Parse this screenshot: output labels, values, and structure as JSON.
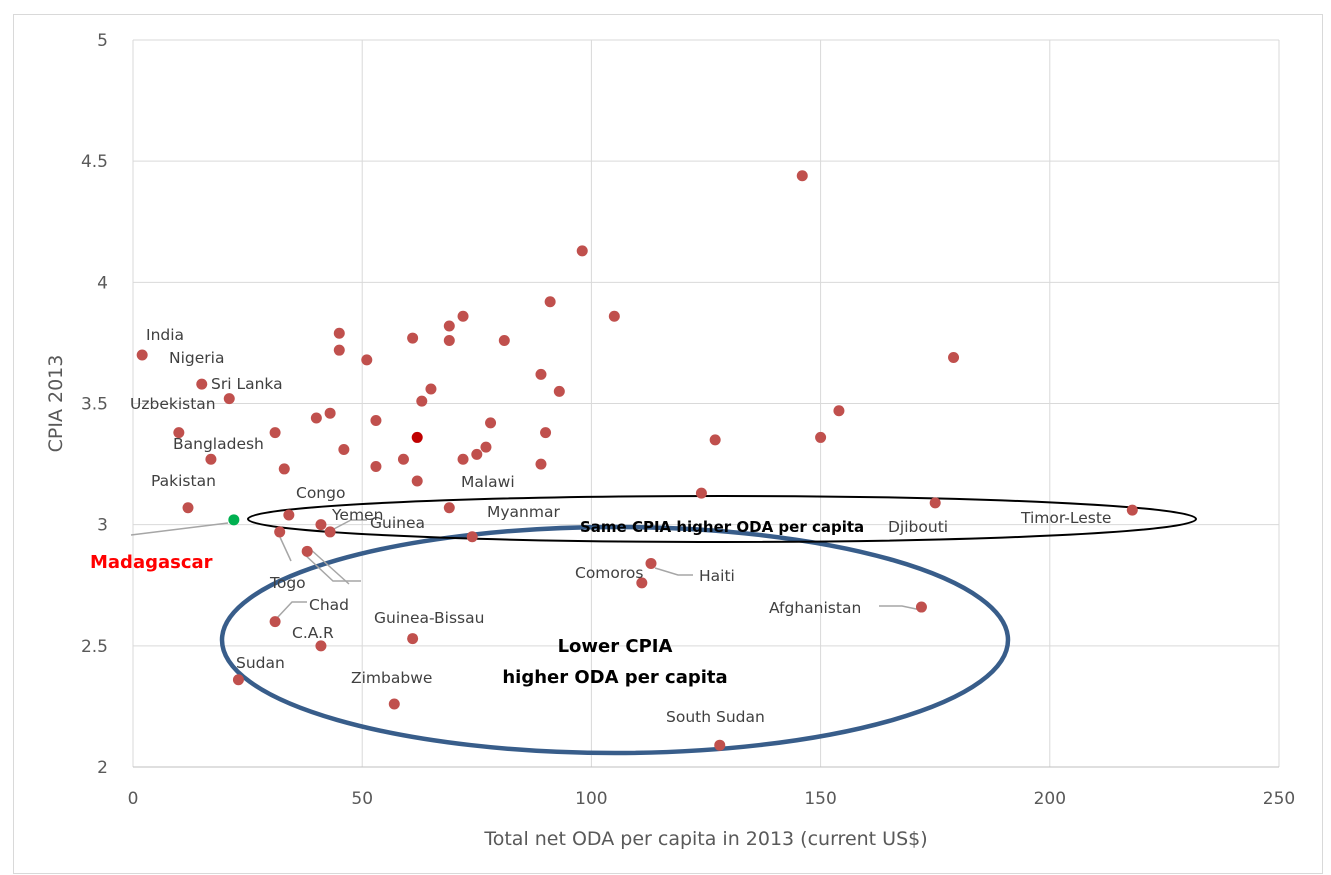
{
  "chart_data": {
    "type": "scatter",
    "title": "",
    "xlabel": "Total net ODA per capita in 2013 (current US$)",
    "ylabel": "CPIA 2013",
    "xlim": [
      0,
      250
    ],
    "ylim": [
      2,
      5
    ],
    "x_ticks": [
      "0",
      "50",
      "100",
      "150",
      "200",
      "250"
    ],
    "y_ticks": [
      "2",
      "2.5",
      "3",
      "3.5",
      "4",
      "4.5",
      "5"
    ],
    "grid": true,
    "colors": {
      "point": "#c0504d",
      "highlight": "#00b050",
      "average": "#c00000",
      "ellipse_lower": "#385d8a",
      "ellipse_same": "#000000",
      "leader": "#a6a6a6"
    },
    "points": [
      {
        "x": 2,
        "y": 3.7,
        "label": "India"
      },
      {
        "x": 15,
        "y": 3.58,
        "label": "Nigeria"
      },
      {
        "x": 21,
        "y": 3.52,
        "label": "Sri Lanka"
      },
      {
        "x": 10,
        "y": 3.38,
        "label": "Uzbekistan"
      },
      {
        "x": 17,
        "y": 3.27,
        "label": "Bangladesh"
      },
      {
        "x": 12,
        "y": 3.07,
        "label": "Pakistan"
      },
      {
        "x": 34,
        "y": 3.04,
        "label": "Congo"
      },
      {
        "x": 41,
        "y": 3.0,
        "label": "Yemen"
      },
      {
        "x": 43,
        "y": 2.97,
        "label": "Guinea"
      },
      {
        "x": 32,
        "y": 2.97,
        "label": "Togo"
      },
      {
        "x": 38,
        "y": 2.89,
        "label": "Chad"
      },
      {
        "x": 31,
        "y": 2.6,
        "label": "C.A.R"
      },
      {
        "x": 41,
        "y": 2.5,
        "label": "Sudan"
      },
      {
        "x": 23,
        "y": 2.36,
        "label": "Zimbabwe"
      },
      {
        "x": 61,
        "y": 2.53,
        "label": "Guinea-Bissau"
      },
      {
        "x": 57,
        "y": 2.26,
        "label": ""
      },
      {
        "x": 74,
        "y": 2.95,
        "label": "Myanmar"
      },
      {
        "x": 69,
        "y": 3.07,
        "label": "Malawi"
      },
      {
        "x": 111,
        "y": 2.76,
        "label": "Comoros"
      },
      {
        "x": 113,
        "y": 2.84,
        "label": "Haiti"
      },
      {
        "x": 172,
        "y": 2.66,
        "label": "Afghanistan"
      },
      {
        "x": 128,
        "y": 2.09,
        "label": "South Sudan"
      },
      {
        "x": 175,
        "y": 3.09,
        "label": "Djibouti"
      },
      {
        "x": 218,
        "y": 3.06,
        "label": "Timor-Leste"
      },
      {
        "x": 124,
        "y": 3.13,
        "label": ""
      },
      {
        "x": 146,
        "y": 4.44,
        "label": ""
      },
      {
        "x": 98,
        "y": 4.13,
        "label": ""
      },
      {
        "x": 91,
        "y": 3.92,
        "label": ""
      },
      {
        "x": 105,
        "y": 3.86,
        "label": ""
      },
      {
        "x": 72,
        "y": 3.86,
        "label": ""
      },
      {
        "x": 69,
        "y": 3.82,
        "label": ""
      },
      {
        "x": 45,
        "y": 3.79,
        "label": ""
      },
      {
        "x": 61,
        "y": 3.77,
        "label": ""
      },
      {
        "x": 81,
        "y": 3.76,
        "label": ""
      },
      {
        "x": 69,
        "y": 3.76,
        "label": ""
      },
      {
        "x": 45,
        "y": 3.72,
        "label": ""
      },
      {
        "x": 51,
        "y": 3.68,
        "label": ""
      },
      {
        "x": 179,
        "y": 3.69,
        "label": ""
      },
      {
        "x": 89,
        "y": 3.62,
        "label": ""
      },
      {
        "x": 65,
        "y": 3.56,
        "label": ""
      },
      {
        "x": 93,
        "y": 3.55,
        "label": ""
      },
      {
        "x": 63,
        "y": 3.51,
        "label": ""
      },
      {
        "x": 154,
        "y": 3.47,
        "label": ""
      },
      {
        "x": 43,
        "y": 3.46,
        "label": ""
      },
      {
        "x": 40,
        "y": 3.44,
        "label": ""
      },
      {
        "x": 53,
        "y": 3.43,
        "label": ""
      },
      {
        "x": 78,
        "y": 3.42,
        "label": ""
      },
      {
        "x": 31,
        "y": 3.38,
        "label": ""
      },
      {
        "x": 90,
        "y": 3.38,
        "label": ""
      },
      {
        "x": 150,
        "y": 3.36,
        "label": ""
      },
      {
        "x": 127,
        "y": 3.35,
        "label": ""
      },
      {
        "x": 77,
        "y": 3.32,
        "label": ""
      },
      {
        "x": 46,
        "y": 3.31,
        "label": ""
      },
      {
        "x": 75,
        "y": 3.29,
        "label": ""
      },
      {
        "x": 59,
        "y": 3.27,
        "label": ""
      },
      {
        "x": 72,
        "y": 3.27,
        "label": ""
      },
      {
        "x": 89,
        "y": 3.25,
        "label": ""
      },
      {
        "x": 53,
        "y": 3.24,
        "label": ""
      },
      {
        "x": 33,
        "y": 3.23,
        "label": ""
      },
      {
        "x": 62,
        "y": 3.18,
        "label": ""
      }
    ],
    "highlight": {
      "x": 22,
      "y": 3.02,
      "label": "Madagascar"
    },
    "average_point": {
      "x": 62,
      "y": 3.36
    },
    "annotations": {
      "same": "Same CPIA higher ODA per capita",
      "lower_line1": "Lower CPIA",
      "lower_line2": "higher ODA per capita"
    }
  }
}
